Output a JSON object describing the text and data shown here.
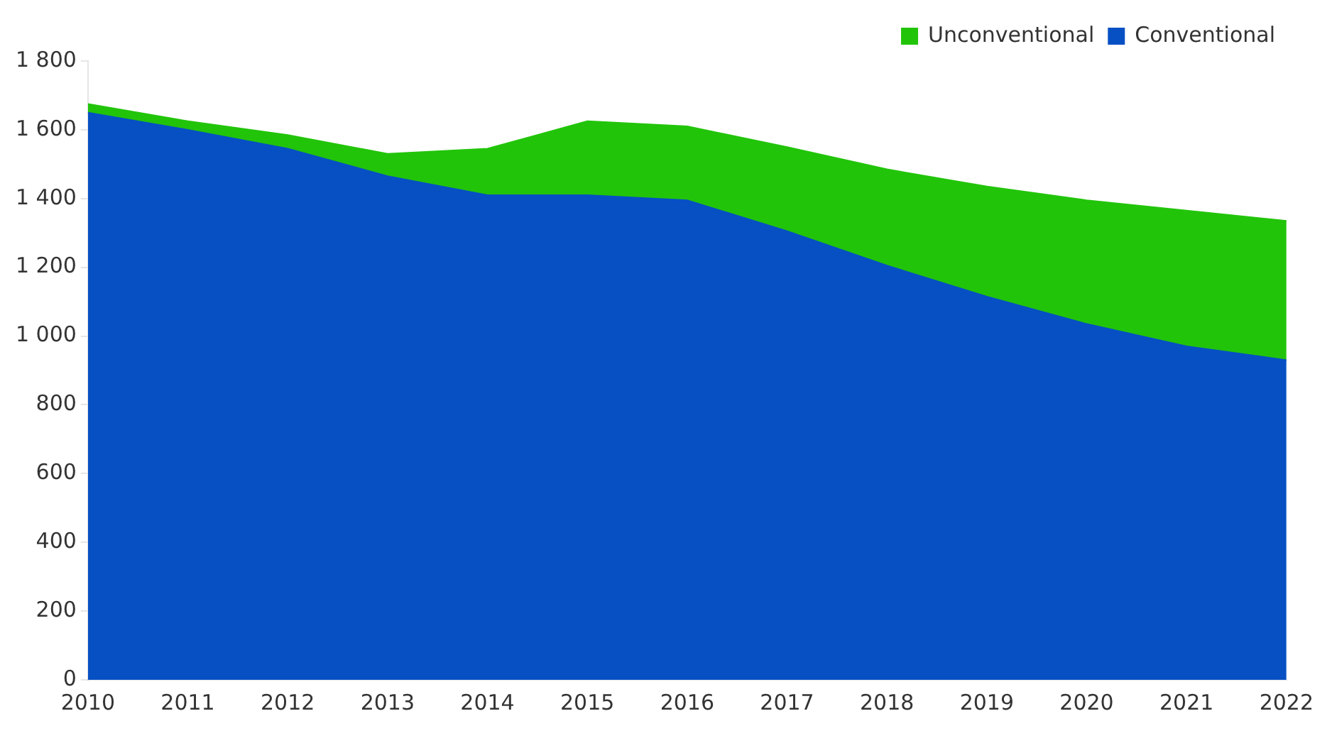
{
  "chart_data": {
    "type": "area",
    "stacked": true,
    "categories": [
      "2010",
      "2011",
      "2012",
      "2013",
      "2014",
      "2015",
      "2016",
      "2017",
      "2018",
      "2019",
      "2020",
      "2021",
      "2022"
    ],
    "series": [
      {
        "name": "Conventional",
        "color": "#0750c4",
        "values": [
          1650,
          1600,
          1545,
          1465,
          1410,
          1410,
          1395,
          1305,
          1205,
          1115,
          1035,
          970,
          930
        ]
      },
      {
        "name": "Unconventional",
        "color": "#22c40a",
        "values": [
          25,
          25,
          40,
          65,
          135,
          215,
          215,
          245,
          280,
          320,
          360,
          395,
          405
        ]
      }
    ],
    "ylim": [
      0,
      1800
    ],
    "yticks": [
      0,
      200,
      400,
      600,
      800,
      {
        "value": 1000,
        "label": "1 000"
      },
      {
        "value": 1200,
        "label": "1 200"
      },
      {
        "value": 1400,
        "label": "1 400"
      },
      {
        "value": 1600,
        "label": "1 600"
      },
      {
        "value": 1800,
        "label": "1 800"
      }
    ],
    "grid": false,
    "legend": "top right"
  }
}
